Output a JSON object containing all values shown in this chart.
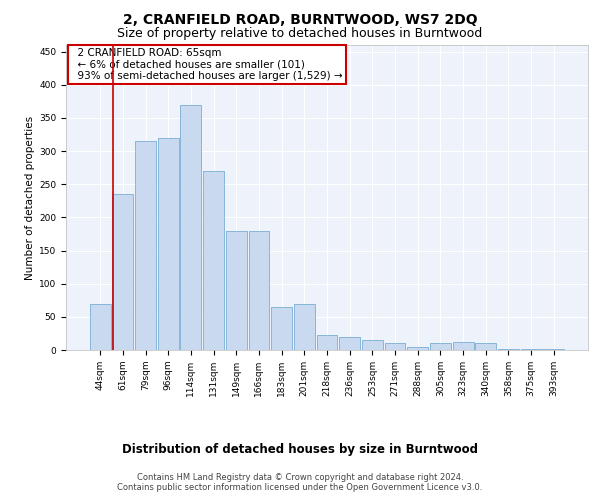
{
  "title": "2, CRANFIELD ROAD, BURNTWOOD, WS7 2DQ",
  "subtitle": "Size of property relative to detached houses in Burntwood",
  "xlabel": "Distribution of detached houses by size in Burntwood",
  "ylabel": "Number of detached properties",
  "categories": [
    "44sqm",
    "61sqm",
    "79sqm",
    "96sqm",
    "114sqm",
    "131sqm",
    "149sqm",
    "166sqm",
    "183sqm",
    "201sqm",
    "218sqm",
    "236sqm",
    "253sqm",
    "271sqm",
    "288sqm",
    "305sqm",
    "323sqm",
    "340sqm",
    "358sqm",
    "375sqm",
    "393sqm"
  ],
  "values": [
    70,
    235,
    315,
    320,
    370,
    270,
    180,
    180,
    65,
    70,
    22,
    20,
    15,
    10,
    5,
    10,
    12,
    10,
    1,
    1,
    2
  ],
  "bar_color": "#c9d9f0",
  "bar_edge_color": "#7aafd4",
  "vline_color": "#cc0000",
  "vline_x": 0.55,
  "annotation_text": "  2 CRANFIELD ROAD: 65sqm\n  ← 6% of detached houses are smaller (101)\n  93% of semi-detached houses are larger (1,529) →",
  "annotation_box_color": "#cc0000",
  "ylim": [
    0,
    460
  ],
  "yticks": [
    0,
    50,
    100,
    150,
    200,
    250,
    300,
    350,
    400,
    450
  ],
  "background_color": "#eef2fa",
  "grid_color": "#ffffff",
  "title_fontsize": 10,
  "subtitle_fontsize": 9,
  "xlabel_fontsize": 8.5,
  "ylabel_fontsize": 7.5,
  "tick_fontsize": 6.5,
  "annotation_fontsize": 7.5,
  "footer_fontsize": 6,
  "footer_line1": "Contains HM Land Registry data © Crown copyright and database right 2024.",
  "footer_line2": "Contains public sector information licensed under the Open Government Licence v3.0."
}
